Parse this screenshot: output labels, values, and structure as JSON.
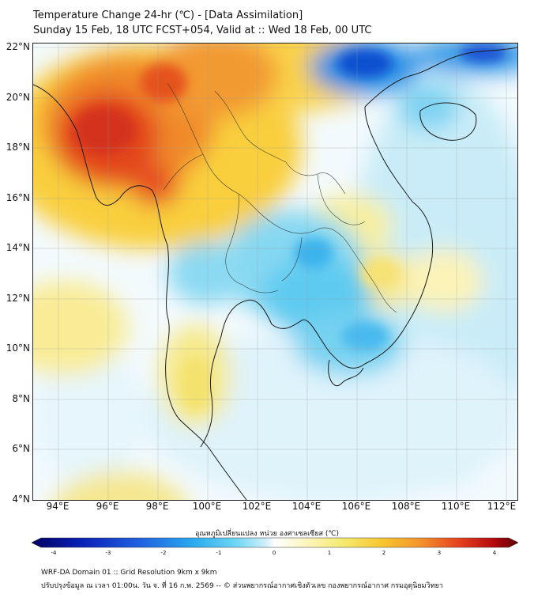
{
  "header": {
    "title_line1": "Temperature Change 24-hr (℃) - [Data Assimilation]",
    "title_line2": "Sunday 15 Feb, 18 UTC FCST+054, Valid at :: Wed 18 Feb, 00 UTC"
  },
  "map": {
    "lat_ticks": [
      "22°N",
      "20°N",
      "18°N",
      "16°N",
      "14°N",
      "12°N",
      "10°N",
      "8°N",
      "6°N",
      "4°N"
    ],
    "lon_ticks": [
      "94°E",
      "96°E",
      "98°E",
      "100°E",
      "102°E",
      "104°E",
      "106°E",
      "108°E",
      "110°E",
      "112°E"
    ],
    "lat_range": [
      4,
      22
    ],
    "lon_range": [
      93,
      112.5
    ],
    "grid": true
  },
  "colorbar": {
    "label": "อุณหภูมิเปลี่ยนแปลง หน่วย องศาเซลเซียส (℃)",
    "ticks": [
      "-4",
      "-3",
      "-2",
      "-1",
      "0",
      "1",
      "2",
      "3",
      "4"
    ],
    "range": [
      -4,
      4
    ],
    "colors": [
      "#000060",
      "#0a1fb5",
      "#1f5fe0",
      "#29a9ee",
      "#6fd6f3",
      "#cdeefa",
      "#ffffff",
      "#fdf6c2",
      "#f5ea6e",
      "#f8c630",
      "#f3922c",
      "#e6401e",
      "#b4080d",
      "#5a0004"
    ]
  },
  "footer": {
    "line1": "WRF-DA Domain 01 :: Grid Resolution 9km x 9km",
    "line2": "ปรับปรุงข้อมูล ณ เวลา 01:00น. วัน จ. ที่ 16 ก.พ. 2569 -- © ส่วนพยากรณ์อากาศเชิงตัวเลข กองพยากรณ์อากาศ กรมอุตุนิยมวิทยา"
  }
}
